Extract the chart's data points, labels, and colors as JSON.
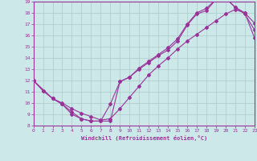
{
  "xlabel": "Windchill (Refroidissement éolien,°C)",
  "bg_color": "#cce8e8",
  "line_color": "#993399",
  "grid_color": "#aacccc",
  "xlim": [
    0,
    23
  ],
  "ylim": [
    8,
    19
  ],
  "xticks": [
    0,
    1,
    2,
    3,
    4,
    5,
    6,
    7,
    8,
    9,
    10,
    11,
    12,
    13,
    14,
    15,
    16,
    17,
    18,
    19,
    20,
    21,
    22,
    23
  ],
  "yticks": [
    8,
    9,
    10,
    11,
    12,
    13,
    14,
    15,
    16,
    17,
    18,
    19
  ],
  "curve1_x": [
    0,
    1,
    2,
    3,
    4,
    5,
    6,
    7,
    8,
    9,
    10,
    11,
    12,
    13,
    14,
    15,
    16,
    17,
    18,
    19,
    20,
    21,
    22,
    23
  ],
  "curve1_y": [
    12.0,
    11.1,
    10.4,
    9.9,
    9.0,
    8.6,
    8.4,
    8.4,
    9.9,
    11.9,
    12.3,
    13.0,
    13.6,
    14.2,
    14.7,
    15.5,
    16.9,
    17.9,
    18.2,
    19.2,
    19.3,
    18.5,
    18.0,
    17.1
  ],
  "curve2_x": [
    0,
    2,
    3,
    4,
    5,
    6,
    7,
    8,
    9,
    10,
    11,
    12,
    13,
    14,
    15,
    16,
    17,
    18,
    19,
    20,
    21,
    22,
    23
  ],
  "curve2_y": [
    12.0,
    10.4,
    9.9,
    9.2,
    8.6,
    8.4,
    8.4,
    8.4,
    11.9,
    12.3,
    13.1,
    13.7,
    14.3,
    14.9,
    15.7,
    17.0,
    18.0,
    18.4,
    19.2,
    19.3,
    18.5,
    17.9,
    16.5
  ],
  "curve3_x": [
    0,
    1,
    2,
    3,
    4,
    5,
    6,
    7,
    8,
    9,
    10,
    11,
    12,
    13,
    14,
    15,
    16,
    17,
    18,
    19,
    20,
    21,
    22,
    23
  ],
  "curve3_y": [
    12.0,
    11.1,
    10.4,
    10.0,
    9.5,
    9.1,
    8.8,
    8.5,
    8.6,
    9.5,
    10.5,
    11.5,
    12.5,
    13.3,
    14.0,
    14.8,
    15.5,
    16.1,
    16.7,
    17.3,
    17.9,
    18.3,
    18.0,
    15.8
  ]
}
